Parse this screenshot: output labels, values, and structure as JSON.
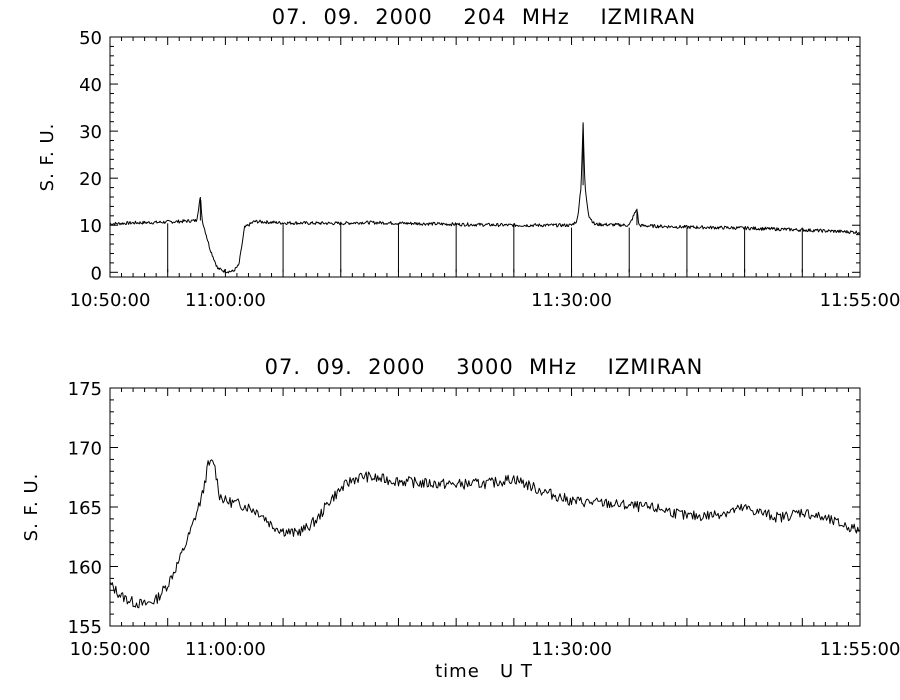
{
  "chart_data": [
    {
      "type": "line",
      "title": "07.  09.  2000    204  MHz    IZMIRAN",
      "xlabel": "",
      "ylabel": "S. F. U.",
      "xlim": [
        "10:50:00",
        "11:55:00"
      ],
      "ylim": [
        -1,
        50
      ],
      "x_ticks": [
        "10:50:00",
        "11:00:00",
        "11:30:00",
        "11:55:00"
      ],
      "y_ticks": [
        0,
        10,
        20,
        30,
        40,
        50
      ],
      "series": [
        {
          "x": [
            "10:50:00",
            "10:52:00",
            "10:54:00",
            "10:56:00",
            "10:57:30",
            "10:57:50",
            "10:58:00",
            "10:58:40",
            "10:59:20",
            "11:00:00",
            "11:00:40",
            "11:01:10",
            "11:01:40",
            "11:02:30",
            "11:05:00",
            "11:10:00",
            "11:12:00",
            "11:20:00",
            "11:25:00",
            "11:30:00",
            "11:30:30",
            "11:30:50",
            "11:31:00",
            "11:31:10",
            "11:31:30",
            "11:32:00",
            "11:35:00",
            "11:35:40",
            "11:35:50",
            "11:36:10",
            "11:40:00",
            "11:45:00",
            "11:50:00",
            "11:55:00"
          ],
          "y": [
            10.3,
            10.5,
            10.6,
            10.8,
            11.0,
            16.0,
            11.0,
            5.0,
            0.8,
            0.2,
            0.2,
            1.5,
            9.5,
            10.8,
            10.5,
            10.4,
            10.6,
            10.2,
            10.0,
            10.0,
            11.0,
            18.5,
            31.5,
            18.0,
            12.0,
            10.2,
            10.0,
            13.5,
            10.0,
            9.9,
            9.6,
            9.4,
            9.0,
            8.5
          ]
        }
      ]
    },
    {
      "type": "line",
      "title": "07.  09.  2000    3000  MHz    IZMIRAN",
      "xlabel": "time   U T",
      "ylabel": "S. F. U.",
      "xlim": [
        "10:50:00",
        "11:55:00"
      ],
      "ylim": [
        155,
        175
      ],
      "x_ticks": [
        "10:50:00",
        "11:00:00",
        "11:30:00",
        "11:55:00"
      ],
      "y_ticks": [
        155,
        160,
        165,
        170,
        175
      ],
      "series": [
        {
          "x": [
            "10:50:00",
            "10:50:30",
            "10:51:00",
            "10:52:00",
            "10:53:00",
            "10:54:00",
            "10:55:00",
            "10:56:00",
            "10:57:00",
            "10:58:00",
            "10:58:30",
            "10:59:00",
            "10:59:30",
            "11:00:00",
            "11:01:00",
            "11:02:00",
            "11:03:00",
            "11:04:00",
            "11:05:00",
            "11:06:00",
            "11:07:00",
            "11:08:00",
            "11:09:00",
            "11:10:00",
            "11:11:00",
            "11:12:00",
            "11:13:00",
            "11:15:00",
            "11:17:00",
            "11:20:00",
            "11:23:00",
            "11:25:00",
            "11:27:00",
            "11:30:00",
            "11:33:00",
            "11:35:00",
            "11:38:00",
            "11:40:00",
            "11:42:00",
            "11:45:00",
            "11:48:00",
            "11:50:00",
            "11:52:00",
            "11:55:00"
          ],
          "y": [
            158.5,
            158.0,
            157.5,
            157.0,
            156.8,
            157.2,
            158.5,
            160.5,
            163.0,
            166.0,
            168.5,
            168.8,
            166.0,
            165.5,
            165.3,
            165.0,
            164.5,
            163.5,
            163.0,
            162.8,
            163.2,
            164.0,
            165.5,
            166.5,
            167.3,
            167.6,
            167.4,
            167.2,
            167.0,
            166.9,
            167.0,
            167.4,
            166.5,
            165.5,
            165.3,
            165.1,
            164.8,
            164.2,
            164.3,
            164.9,
            164.1,
            164.6,
            164.0,
            163.0
          ]
        }
      ]
    }
  ]
}
